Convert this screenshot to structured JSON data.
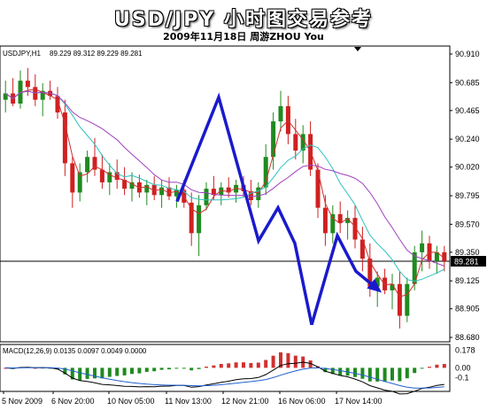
{
  "header": {
    "title": "USD/JPY 小时图交易参考",
    "subtitle": "2009年11月18日    周游ZHOU You"
  },
  "chart_data": [
    {
      "type": "candlestick",
      "symbol_label": "USDJPY,H1",
      "ohlc_label": "89.229 89.312 89.229 89.281",
      "last_price": "89.281",
      "y_ticks": [
        "90.910",
        "90.685",
        "90.465",
        "90.240",
        "90.020",
        "89.795",
        "89.570",
        "89.350",
        "89.125",
        "88.905",
        "88.680"
      ],
      "ylim": [
        88.68,
        90.91
      ],
      "x_ticks": [
        "5 Nov 2009",
        "6 Nov 20:00",
        "10 Nov 05:00",
        "11 Nov 13:00",
        "12 Nov 21:00",
        "16 Nov 06:00",
        "17 Nov 14:00"
      ],
      "colors": {
        "up": "#1f8a1f",
        "down": "#d02020",
        "pattern": "#1a1acc",
        "ma_red": "#d03030",
        "ma_cyan": "#30c0c0",
        "ma_purple": "#a040c0"
      },
      "pattern_line": [
        [
          "11 Nov 13:00",
          89.75
        ],
        [
          "12 Nov 00:00",
          90.57
        ],
        [
          "12 Nov 14:00",
          89.44
        ],
        [
          "12 Nov 21:00",
          89.7
        ],
        [
          "16 Nov 02:00",
          89.42
        ],
        [
          "16 Nov 06:00",
          88.78
        ],
        [
          "17 Nov 02:00",
          89.48
        ],
        [
          "17 Nov 14:00",
          89.2
        ]
      ],
      "arrow_target": [
        "17 Nov 17:00",
        89.05
      ],
      "candles": [
        {
          "o": 90.55,
          "h": 90.7,
          "l": 90.45,
          "c": 90.6
        },
        {
          "o": 90.6,
          "h": 90.72,
          "l": 90.5,
          "c": 90.52
        },
        {
          "o": 90.52,
          "h": 90.78,
          "l": 90.48,
          "c": 90.7
        },
        {
          "o": 90.7,
          "h": 90.8,
          "l": 90.58,
          "c": 90.65
        },
        {
          "o": 90.65,
          "h": 90.75,
          "l": 90.5,
          "c": 90.55
        },
        {
          "o": 90.55,
          "h": 90.68,
          "l": 90.42,
          "c": 90.62
        },
        {
          "o": 90.62,
          "h": 90.7,
          "l": 90.55,
          "c": 90.58
        },
        {
          "o": 90.58,
          "h": 90.65,
          "l": 90.4,
          "c": 90.45
        },
        {
          "o": 90.45,
          "h": 90.55,
          "l": 89.95,
          "c": 90.05
        },
        {
          "o": 90.05,
          "h": 90.1,
          "l": 89.7,
          "c": 89.82
        },
        {
          "o": 89.82,
          "h": 90.05,
          "l": 89.75,
          "c": 89.98
        },
        {
          "o": 89.98,
          "h": 90.15,
          "l": 89.9,
          "c": 90.1
        },
        {
          "o": 90.1,
          "h": 90.25,
          "l": 89.95,
          "c": 90.0
        },
        {
          "o": 90.0,
          "h": 90.12,
          "l": 89.85,
          "c": 89.9
        },
        {
          "o": 89.9,
          "h": 90.05,
          "l": 89.8,
          "c": 89.98
        },
        {
          "o": 89.98,
          "h": 90.08,
          "l": 89.85,
          "c": 89.92
        },
        {
          "o": 89.92,
          "h": 90.02,
          "l": 89.8,
          "c": 89.85
        },
        {
          "o": 89.85,
          "h": 89.98,
          "l": 89.75,
          "c": 89.9
        },
        {
          "o": 89.9,
          "h": 89.96,
          "l": 89.78,
          "c": 89.82
        },
        {
          "o": 89.82,
          "h": 89.92,
          "l": 89.72,
          "c": 89.88
        },
        {
          "o": 89.88,
          "h": 89.95,
          "l": 89.76,
          "c": 89.8
        },
        {
          "o": 89.8,
          "h": 89.92,
          "l": 89.7,
          "c": 89.86
        },
        {
          "o": 89.86,
          "h": 89.94,
          "l": 89.76,
          "c": 89.79
        },
        {
          "o": 89.79,
          "h": 89.88,
          "l": 89.7,
          "c": 89.84
        },
        {
          "o": 89.84,
          "h": 89.92,
          "l": 89.7,
          "c": 89.74
        },
        {
          "o": 89.74,
          "h": 89.82,
          "l": 89.4,
          "c": 89.5
        },
        {
          "o": 89.5,
          "h": 89.8,
          "l": 89.32,
          "c": 89.72
        },
        {
          "o": 89.72,
          "h": 89.9,
          "l": 89.68,
          "c": 89.85
        },
        {
          "o": 89.85,
          "h": 89.95,
          "l": 89.76,
          "c": 89.8
        },
        {
          "o": 89.8,
          "h": 89.9,
          "l": 89.72,
          "c": 89.86
        },
        {
          "o": 89.86,
          "h": 89.94,
          "l": 89.78,
          "c": 89.82
        },
        {
          "o": 89.82,
          "h": 89.92,
          "l": 89.74,
          "c": 89.88
        },
        {
          "o": 89.88,
          "h": 89.95,
          "l": 89.78,
          "c": 89.83
        },
        {
          "o": 89.83,
          "h": 89.92,
          "l": 89.72,
          "c": 89.76
        },
        {
          "o": 89.76,
          "h": 89.9,
          "l": 89.7,
          "c": 89.86
        },
        {
          "o": 89.86,
          "h": 90.2,
          "l": 89.8,
          "c": 90.1
        },
        {
          "o": 90.1,
          "h": 90.45,
          "l": 90.0,
          "c": 90.38
        },
        {
          "o": 90.38,
          "h": 90.62,
          "l": 90.3,
          "c": 90.5
        },
        {
          "o": 90.5,
          "h": 90.58,
          "l": 90.2,
          "c": 90.28
        },
        {
          "o": 90.28,
          "h": 90.4,
          "l": 90.08,
          "c": 90.15
        },
        {
          "o": 90.15,
          "h": 90.35,
          "l": 90.05,
          "c": 90.28
        },
        {
          "o": 90.28,
          "h": 90.38,
          "l": 89.95,
          "c": 90.0
        },
        {
          "o": 90.0,
          "h": 90.05,
          "l": 89.62,
          "c": 89.7
        },
        {
          "o": 89.7,
          "h": 89.8,
          "l": 89.4,
          "c": 89.5
        },
        {
          "o": 89.5,
          "h": 89.72,
          "l": 89.42,
          "c": 89.65
        },
        {
          "o": 89.65,
          "h": 89.75,
          "l": 89.5,
          "c": 89.58
        },
        {
          "o": 89.58,
          "h": 89.68,
          "l": 89.45,
          "c": 89.62
        },
        {
          "o": 89.62,
          "h": 89.72,
          "l": 89.38,
          "c": 89.45
        },
        {
          "o": 89.45,
          "h": 89.55,
          "l": 89.2,
          "c": 89.3
        },
        {
          "o": 89.3,
          "h": 89.42,
          "l": 89.0,
          "c": 89.08
        },
        {
          "o": 89.08,
          "h": 89.2,
          "l": 88.92,
          "c": 89.15
        },
        {
          "o": 89.15,
          "h": 89.22,
          "l": 89.02,
          "c": 89.05
        },
        {
          "o": 89.05,
          "h": 89.18,
          "l": 88.9,
          "c": 89.1
        },
        {
          "o": 89.1,
          "h": 89.2,
          "l": 88.75,
          "c": 88.85
        },
        {
          "o": 88.85,
          "h": 89.15,
          "l": 88.8,
          "c": 89.1
        },
        {
          "o": 89.1,
          "h": 89.4,
          "l": 89.05,
          "c": 89.35
        },
        {
          "o": 89.35,
          "h": 89.52,
          "l": 89.2,
          "c": 89.42
        },
        {
          "o": 89.42,
          "h": 89.48,
          "l": 89.22,
          "c": 89.28
        },
        {
          "o": 89.28,
          "h": 89.4,
          "l": 89.18,
          "c": 89.35
        },
        {
          "o": 89.35,
          "h": 89.4,
          "l": 89.2,
          "c": 89.28
        }
      ]
    },
    {
      "type": "macd",
      "label": "MACD(12,26,9) 0.0135 0.0097 0.0049 0.0000",
      "y_ticks": [
        "0.178",
        "0.00",
        "-0.1"
      ],
      "ylim": [
        -0.22,
        0.2
      ]
    }
  ]
}
